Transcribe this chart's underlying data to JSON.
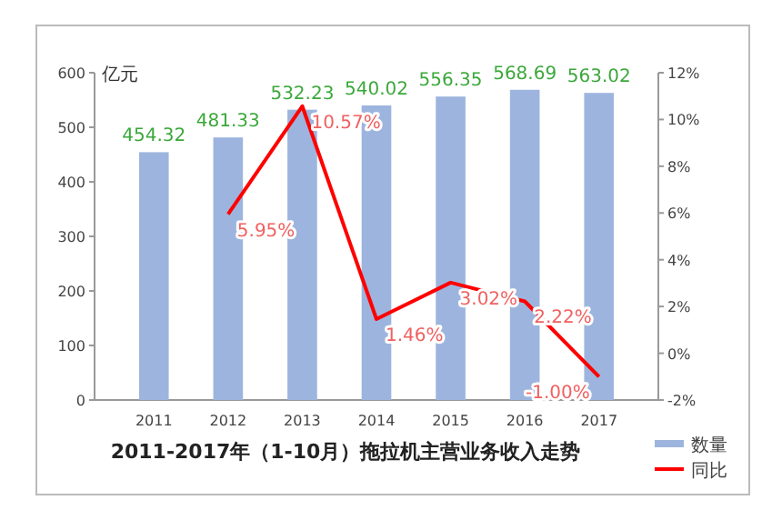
{
  "chart_data": {
    "type": "bar",
    "title": "2011-2017年（1-10月）拖拉机主营业务收入走势",
    "ylabel": "亿元",
    "categories": [
      "2011",
      "2012",
      "2013",
      "2014",
      "2015",
      "2016",
      "2017"
    ],
    "series": [
      {
        "name": "数量",
        "color": "#9db5de",
        "values": [
          454.32,
          481.33,
          532.23,
          540.02,
          556.35,
          568.69,
          563.02
        ],
        "value_labels": [
          "454.32",
          "481.33",
          "532.23",
          "540.02",
          "556.35",
          "568.69",
          "563.02"
        ]
      },
      {
        "name": "同比",
        "type": "line",
        "axis": "y2",
        "color": "#ff0000",
        "values": [
          null,
          5.95,
          10.57,
          1.46,
          3.02,
          2.22,
          -1.0
        ],
        "value_labels": [
          null,
          "5.95%",
          "10.57%",
          "1.46%",
          "3.02%",
          "2.22%",
          "-1.00%"
        ]
      }
    ],
    "ylim": [
      0,
      600
    ],
    "yticks": [
      0,
      100,
      200,
      300,
      400,
      500,
      600
    ],
    "y2lim": [
      -2,
      12
    ],
    "y2ticks": [
      {
        "value": -2,
        "label": "-2%"
      },
      {
        "value": 0,
        "label": "0%"
      },
      {
        "value": 2,
        "label": "2%"
      },
      {
        "value": 4,
        "label": "4%"
      },
      {
        "value": 6,
        "label": "6%"
      },
      {
        "value": 8,
        "label": "8%"
      },
      {
        "value": 10,
        "label": "10%"
      },
      {
        "value": 12,
        "label": "12%"
      }
    ],
    "grid": false,
    "legend": "bottom right",
    "marker": "none"
  }
}
